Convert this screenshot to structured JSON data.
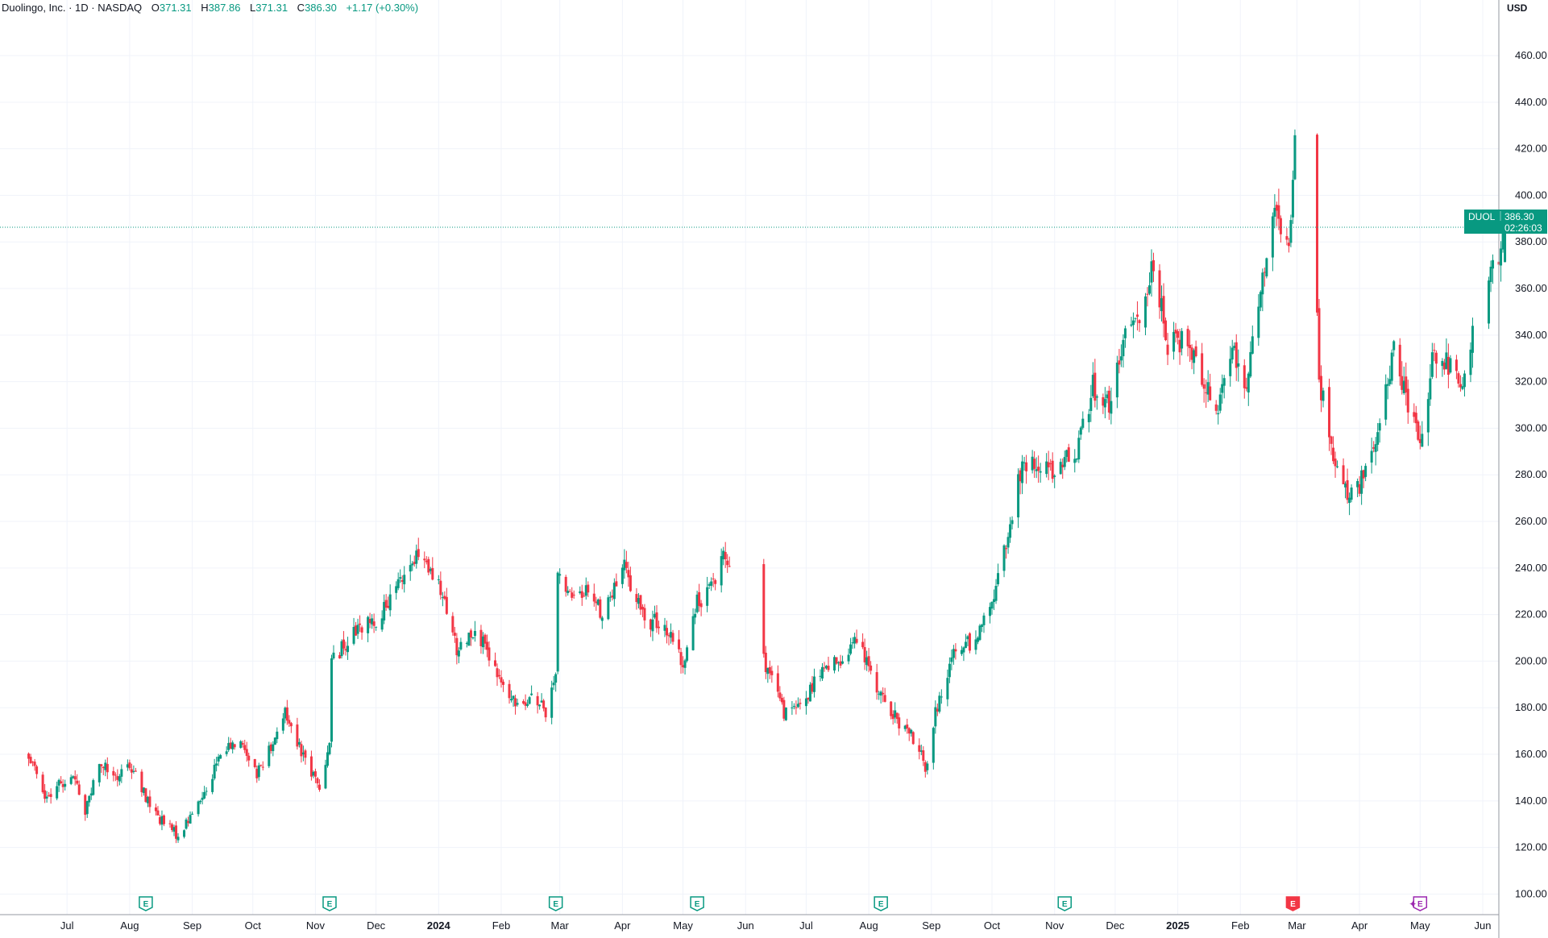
{
  "legend": {
    "symbol": "Duolingo, Inc. · 1D · NASDAQ",
    "o_label": "O",
    "o_value": "371.31",
    "h_label": "H",
    "h_value": "387.86",
    "l_label": "L",
    "l_value": "371.31",
    "c_label": "C",
    "c_value": "386.30",
    "change": "+1.17 (+0.30%)"
  },
  "price_scale": {
    "currency": "USD",
    "ticks": [
      "100.00",
      "120.00",
      "140.00",
      "160.00",
      "180.00",
      "200.00",
      "220.00",
      "240.00",
      "260.00",
      "280.00",
      "300.00",
      "320.00",
      "340.00",
      "360.00",
      "380.00",
      "400.00",
      "420.00",
      "440.00",
      "460.00"
    ]
  },
  "last_price": {
    "ticker": "DUOL",
    "price": "386.30",
    "countdown": "02:26:03"
  },
  "colors": {
    "up": "#089981",
    "down": "#F23645",
    "grid": "#F0F3FA",
    "axis_text": "#131722",
    "earnings_future": "#9C27B0"
  },
  "chart_data": {
    "type": "candlestick",
    "title": "Duolingo, Inc. · 1D · NASDAQ",
    "ylim": [
      96,
      478
    ],
    "yaxis_side": "right",
    "grid": true,
    "x_ticks": [
      "Jul",
      "Aug",
      "Sep",
      "Oct",
      "Nov",
      "Dec",
      "2024",
      "Feb",
      "Mar",
      "Apr",
      "May",
      "Jun",
      "Jul",
      "Aug",
      "Sep",
      "Oct",
      "Nov",
      "Dec",
      "2025",
      "Feb",
      "Mar",
      "Apr",
      "May",
      "Jun"
    ],
    "x_tick_dates": [
      "2023-07-01",
      "2023-08-01",
      "2023-09-01",
      "2023-10-01",
      "2023-11-01",
      "2023-12-01",
      "2024-01-01",
      "2024-02-01",
      "2024-03-01",
      "2024-04-01",
      "2024-05-01",
      "2024-06-01",
      "2024-07-01",
      "2024-08-01",
      "2024-09-01",
      "2024-10-01",
      "2024-11-01",
      "2024-12-01",
      "2025-01-01",
      "2025-02-01",
      "2025-03-01",
      "2025-04-01",
      "2025-05-01",
      "2025-06-01"
    ],
    "anchors": [
      {
        "date": "2023-06-12",
        "close": 160
      },
      {
        "date": "2023-06-20",
        "close": 140
      },
      {
        "date": "2023-07-03",
        "close": 152
      },
      {
        "date": "2023-07-10",
        "close": 136
      },
      {
        "date": "2023-07-17",
        "close": 158
      },
      {
        "date": "2023-07-25",
        "close": 150
      },
      {
        "date": "2023-08-01",
        "close": 156
      },
      {
        "date": "2023-08-07",
        "close": 145
      },
      {
        "date": "2023-08-15",
        "close": 133
      },
      {
        "date": "2023-08-25",
        "close": 125
      },
      {
        "date": "2023-09-05",
        "close": 140
      },
      {
        "date": "2023-09-15",
        "close": 160
      },
      {
        "date": "2023-09-25",
        "close": 166
      },
      {
        "date": "2023-10-03",
        "close": 152
      },
      {
        "date": "2023-10-09",
        "close": 162
      },
      {
        "date": "2023-10-17",
        "close": 178
      },
      {
        "date": "2023-10-27",
        "close": 158
      },
      {
        "date": "2023-11-03",
        "close": 145
      },
      {
        "date": "2023-11-08",
        "close": 166
      },
      {
        "date": "2023-11-09",
        "close": 200
      },
      {
        "date": "2023-11-20",
        "close": 212
      },
      {
        "date": "2023-12-01",
        "close": 218
      },
      {
        "date": "2023-12-08",
        "close": 225
      },
      {
        "date": "2023-12-15",
        "close": 238
      },
      {
        "date": "2023-12-22",
        "close": 245
      },
      {
        "date": "2024-01-02",
        "close": 230
      },
      {
        "date": "2024-01-10",
        "close": 205
      },
      {
        "date": "2024-01-19",
        "close": 215
      },
      {
        "date": "2024-01-29",
        "close": 195
      },
      {
        "date": "2024-02-07",
        "close": 182
      },
      {
        "date": "2024-02-16",
        "close": 185
      },
      {
        "date": "2024-02-23",
        "close": 178
      },
      {
        "date": "2024-02-28",
        "close": 195
      },
      {
        "date": "2024-02-29",
        "close": 240
      },
      {
        "date": "2024-03-07",
        "close": 225
      },
      {
        "date": "2024-03-15",
        "close": 232
      },
      {
        "date": "2024-03-22",
        "close": 220
      },
      {
        "date": "2024-04-02",
        "close": 240
      },
      {
        "date": "2024-04-12",
        "close": 218
      },
      {
        "date": "2024-04-22",
        "close": 215
      },
      {
        "date": "2024-05-01",
        "close": 198
      },
      {
        "date": "2024-05-08",
        "close": 225
      },
      {
        "date": "2024-05-15",
        "close": 232
      },
      {
        "date": "2024-05-22",
        "close": 248
      },
      {
        "date": "2024-06-10",
        "close": 200
      },
      {
        "date": "2024-06-20",
        "close": 178
      },
      {
        "date": "2024-06-28",
        "close": 180
      },
      {
        "date": "2024-07-08",
        "close": 195
      },
      {
        "date": "2024-07-18",
        "close": 200
      },
      {
        "date": "2024-07-25",
        "close": 210
      },
      {
        "date": "2024-08-02",
        "close": 195
      },
      {
        "date": "2024-08-10",
        "close": 180
      },
      {
        "date": "2024-08-20",
        "close": 170
      },
      {
        "date": "2024-08-27",
        "close": 162
      },
      {
        "date": "2024-08-29",
        "close": 150
      },
      {
        "date": "2024-09-03",
        "close": 178
      },
      {
        "date": "2024-09-12",
        "close": 205
      },
      {
        "date": "2024-09-20",
        "close": 208
      },
      {
        "date": "2024-09-30",
        "close": 222
      },
      {
        "date": "2024-10-08",
        "close": 250
      },
      {
        "date": "2024-10-15",
        "close": 282
      },
      {
        "date": "2024-10-25",
        "close": 285
      },
      {
        "date": "2024-11-04",
        "close": 282
      },
      {
        "date": "2024-11-12",
        "close": 292
      },
      {
        "date": "2024-11-20",
        "close": 318
      },
      {
        "date": "2024-11-29",
        "close": 310
      },
      {
        "date": "2024-12-06",
        "close": 340
      },
      {
        "date": "2024-12-13",
        "close": 350
      },
      {
        "date": "2024-12-20",
        "close": 372
      },
      {
        "date": "2024-12-27",
        "close": 335
      },
      {
        "date": "2025-01-06",
        "close": 340
      },
      {
        "date": "2025-01-13",
        "close": 322
      },
      {
        "date": "2025-01-21",
        "close": 310
      },
      {
        "date": "2025-01-28",
        "close": 335
      },
      {
        "date": "2025-02-04",
        "close": 320
      },
      {
        "date": "2025-02-11",
        "close": 360
      },
      {
        "date": "2025-02-18",
        "close": 395
      },
      {
        "date": "2025-02-25",
        "close": 375
      },
      {
        "date": "2025-02-28",
        "close": 430
      },
      {
        "date": "2025-03-05",
        "close": 395
      },
      {
        "date": "2025-03-10",
        "close": 375
      },
      {
        "date": "2025-03-12",
        "close": 320
      },
      {
        "date": "2025-03-20",
        "close": 285
      },
      {
        "date": "2025-03-28",
        "close": 270
      },
      {
        "date": "2025-04-04",
        "close": 280
      },
      {
        "date": "2025-04-11",
        "close": 300
      },
      {
        "date": "2025-04-18",
        "close": 335
      },
      {
        "date": "2025-04-25",
        "close": 310
      },
      {
        "date": "2025-05-01",
        "close": 292
      },
      {
        "date": "2025-05-07",
        "close": 330
      },
      {
        "date": "2025-05-14",
        "close": 328
      },
      {
        "date": "2025-05-21",
        "close": 320
      },
      {
        "date": "2025-05-26",
        "close": 336
      },
      {
        "date": "2025-06-05",
        "close": 365
      },
      {
        "date": "2025-06-11",
        "close": 380
      }
    ],
    "last": {
      "date": "2025-06-12",
      "open": 371.31,
      "high": 387.86,
      "low": 371.31,
      "close": 386.3
    },
    "earnings_markers": [
      {
        "date": "2023-08-09",
        "result": "beat"
      },
      {
        "date": "2023-11-08",
        "result": "beat"
      },
      {
        "date": "2024-02-28",
        "result": "beat"
      },
      {
        "date": "2024-05-08",
        "result": "beat"
      },
      {
        "date": "2024-08-07",
        "result": "beat"
      },
      {
        "date": "2024-11-06",
        "result": "beat"
      },
      {
        "date": "2025-02-27",
        "result": "miss"
      },
      {
        "date": "2025-05-01",
        "result": "upcoming"
      }
    ],
    "earnings_label": "E"
  }
}
